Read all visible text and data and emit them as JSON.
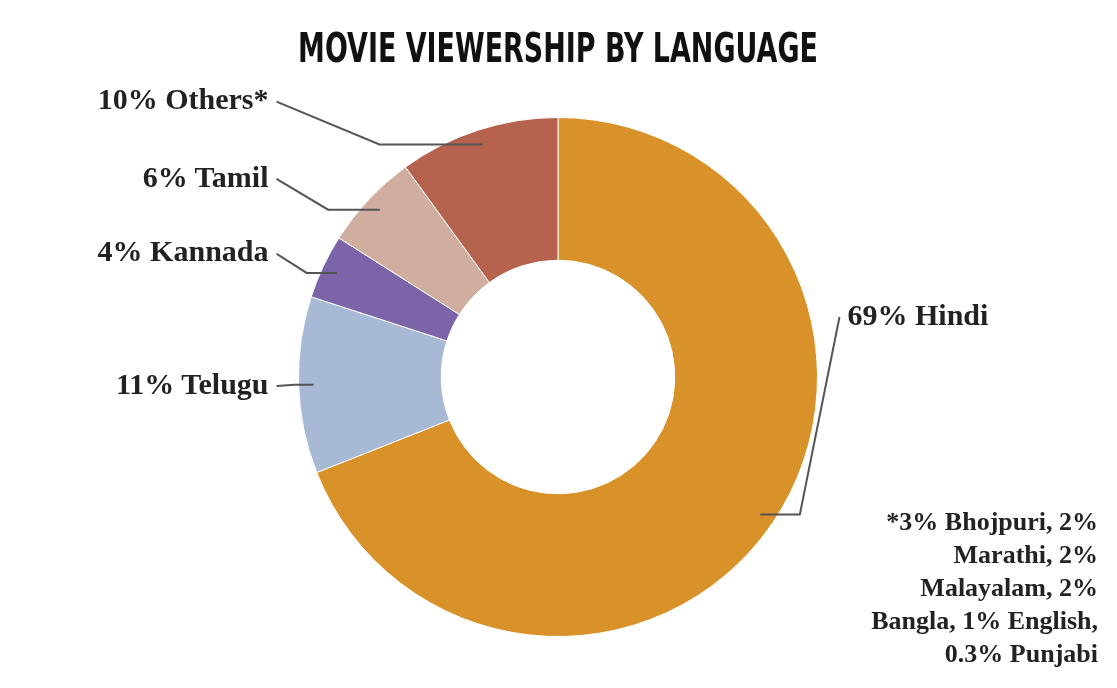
{
  "chart_data": {
    "type": "donut",
    "title": "MOVIE VIEWERSHIP BY LANGUAGE",
    "categories": [
      "Hindi",
      "Telugu",
      "Kannada",
      "Tamil",
      "Others*"
    ],
    "values": [
      69,
      11,
      4,
      6,
      10
    ],
    "colors": [
      "#d9922a",
      "#a7b9d4",
      "#7b64a8",
      "#cfae9f",
      "#b5624e"
    ],
    "value_labels": [
      "69%",
      "11%",
      "4%",
      "6%",
      "10%"
    ],
    "legend": false,
    "annotations": [
      "*3% Bhojpuri, 2% Marathi, 2% Malayalam, 2% Bangla, 1% English, 0.3% Punjabi"
    ]
  }
}
